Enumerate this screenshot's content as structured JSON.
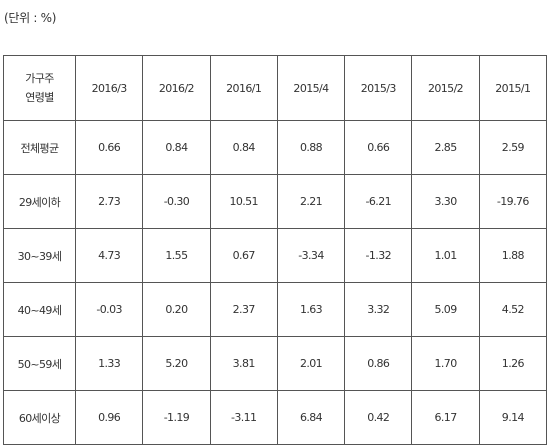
{
  "unit_note": "(단위 : %)",
  "table": {
    "header": [
      [
        "가구주",
        "연령별"
      ],
      "2016/3",
      "2016/2",
      "2016/1",
      "2015/4",
      "2015/3",
      "2015/2",
      "2015/1"
    ],
    "rows": [
      [
        "전체평균",
        "0.66",
        "0.84",
        "0.84",
        "0.88",
        "0.66",
        "2.85",
        "2.59"
      ],
      [
        "29세이하",
        "2.73",
        "-0.30",
        "10.51",
        "2.21",
        "-6.21",
        "3.30",
        "-19.76"
      ],
      [
        "30~39세",
        "4.73",
        "1.55",
        "0.67",
        "-3.34",
        "-1.32",
        "1.01",
        "1.88"
      ],
      [
        "40~49세",
        "-0.03",
        "0.20",
        "2.37",
        "1.63",
        "3.32",
        "5.09",
        "4.52"
      ],
      [
        "50~59세",
        "1.33",
        "5.20",
        "3.81",
        "2.01",
        "0.86",
        "1.70",
        "1.26"
      ],
      [
        "60세이상",
        "0.96",
        "-1.19",
        "-3.11",
        "6.84",
        "0.42",
        "6.17",
        "9.14"
      ]
    ]
  }
}
